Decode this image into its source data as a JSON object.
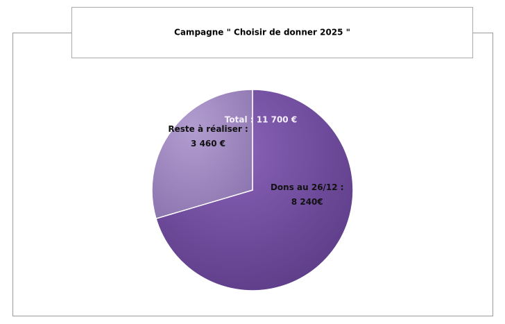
{
  "chart_data": {
    "type": "pie",
    "title": "Campagne \" Choisir de donner  2025 \"",
    "categories": [
      "Dons au 26/12 :",
      "Reste à réaliser :"
    ],
    "values": [
      8240,
      3460
    ],
    "value_labels": [
      "8 240€",
      "3 460 €"
    ],
    "colors": [
      "#7650a4",
      "#a48cc6"
    ],
    "annotation": "Total : 11 700 €"
  }
}
